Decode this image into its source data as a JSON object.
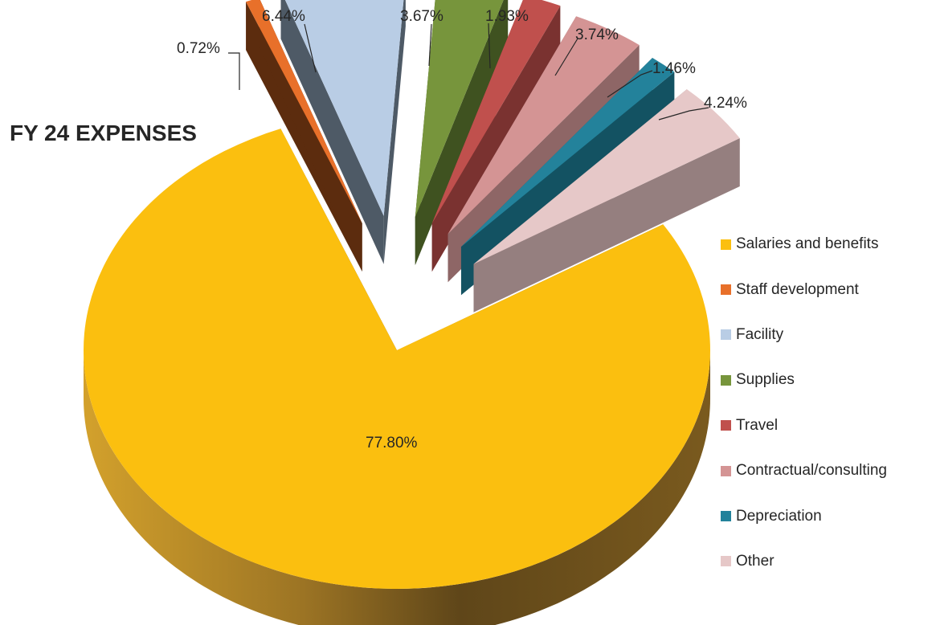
{
  "chart_data": {
    "type": "pie",
    "title": "FY 24 EXPENSES",
    "categories": [
      "Salaries and benefits",
      "Staff development",
      "Facility",
      "Supplies",
      "Travel",
      "Contractual/consulting",
      "Depreciation",
      "Other"
    ],
    "values": [
      77.8,
      0.72,
      6.44,
      3.67,
      1.93,
      3.74,
      1.46,
      4.24
    ],
    "data_labels": [
      "77.80%",
      "0.72%",
      "6.44%",
      "3.67%",
      "1.93%",
      "3.74%",
      "1.46%",
      "4.24%"
    ],
    "colors": [
      "#FBBF0F",
      "#E8702A",
      "#B9CDE5",
      "#77953C",
      "#C0504D",
      "#D49494",
      "#23829B",
      "#E6C8C8"
    ],
    "side_colors": [
      "#C8961A",
      "#5C2C0E",
      "#4E5A66",
      "#3F5220",
      "#7A3230",
      "#8E6666",
      "#135262",
      "#957F7F"
    ],
    "style": "3d-exploded",
    "legend_position": "right"
  }
}
